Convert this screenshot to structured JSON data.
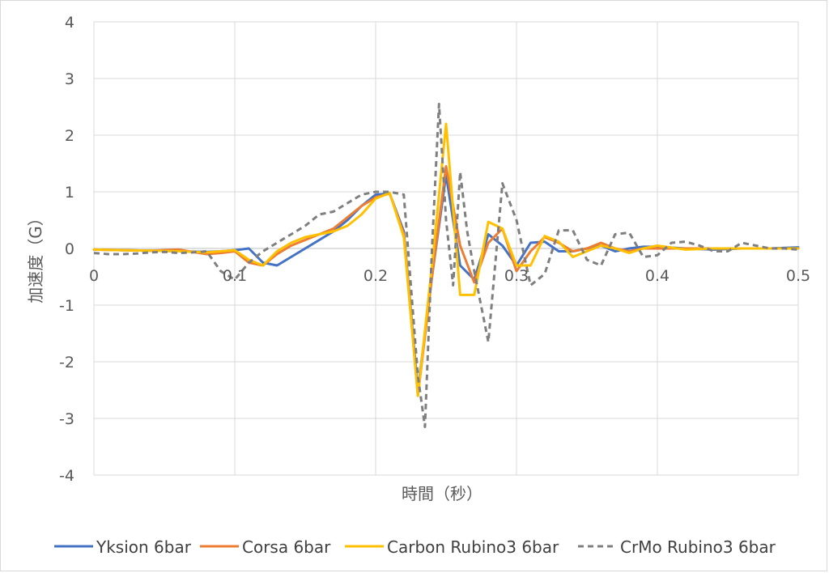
{
  "chart_data": {
    "type": "line",
    "title": "",
    "xlabel": "時間（秒）",
    "ylabel": "加速度（G）",
    "xlim": [
      0,
      0.5
    ],
    "ylim": [
      -4,
      4
    ],
    "x_ticks": [
      "0",
      "0.1",
      "0.2",
      "0.3",
      "0.4",
      "0.5"
    ],
    "y_ticks": [
      "4",
      "3",
      "2",
      "1",
      "0",
      "-1",
      "-2",
      "-3",
      "-4"
    ],
    "grid": true,
    "legend_position": "bottom",
    "series": [
      {
        "name": "Yksion 6bar",
        "color": "#4472C4",
        "dash": "solid",
        "points": [
          [
            0,
            -0.02
          ],
          [
            0.02,
            -0.03
          ],
          [
            0.04,
            -0.04
          ],
          [
            0.06,
            -0.05
          ],
          [
            0.08,
            -0.06
          ],
          [
            0.09,
            -0.05
          ],
          [
            0.1,
            -0.03
          ],
          [
            0.11,
            0.0
          ],
          [
            0.12,
            -0.25
          ],
          [
            0.13,
            -0.3
          ],
          [
            0.14,
            -0.15
          ],
          [
            0.15,
            0.0
          ],
          [
            0.16,
            0.15
          ],
          [
            0.17,
            0.3
          ],
          [
            0.18,
            0.5
          ],
          [
            0.19,
            0.75
          ],
          [
            0.2,
            0.95
          ],
          [
            0.21,
            0.97
          ],
          [
            0.22,
            0.3
          ],
          [
            0.23,
            -2.5
          ],
          [
            0.24,
            -0.5
          ],
          [
            0.25,
            1.3
          ],
          [
            0.26,
            -0.3
          ],
          [
            0.27,
            -0.55
          ],
          [
            0.28,
            0.25
          ],
          [
            0.29,
            0.05
          ],
          [
            0.3,
            -0.3
          ],
          [
            0.31,
            0.1
          ],
          [
            0.32,
            0.12
          ],
          [
            0.33,
            -0.05
          ],
          [
            0.34,
            -0.05
          ],
          [
            0.35,
            0.0
          ],
          [
            0.36,
            0.05
          ],
          [
            0.37,
            -0.05
          ],
          [
            0.38,
            0.0
          ],
          [
            0.39,
            0.03
          ],
          [
            0.4,
            0.03
          ],
          [
            0.42,
            0.0
          ],
          [
            0.44,
            -0.02
          ],
          [
            0.46,
            0.0
          ],
          [
            0.48,
            0.0
          ],
          [
            0.5,
            0.02
          ]
        ]
      },
      {
        "name": "Corsa 6bar",
        "color": "#ED7D31",
        "dash": "solid",
        "points": [
          [
            0,
            -0.02
          ],
          [
            0.02,
            -0.03
          ],
          [
            0.04,
            -0.04
          ],
          [
            0.06,
            -0.02
          ],
          [
            0.08,
            -0.1
          ],
          [
            0.09,
            -0.08
          ],
          [
            0.1,
            -0.05
          ],
          [
            0.11,
            -0.25
          ],
          [
            0.12,
            -0.3
          ],
          [
            0.13,
            -0.1
          ],
          [
            0.14,
            0.05
          ],
          [
            0.15,
            0.15
          ],
          [
            0.16,
            0.25
          ],
          [
            0.17,
            0.35
          ],
          [
            0.18,
            0.55
          ],
          [
            0.19,
            0.75
          ],
          [
            0.2,
            0.9
          ],
          [
            0.21,
            0.97
          ],
          [
            0.22,
            0.25
          ],
          [
            0.23,
            -2.6
          ],
          [
            0.24,
            -0.5
          ],
          [
            0.25,
            1.45
          ],
          [
            0.26,
            0.05
          ],
          [
            0.27,
            -0.6
          ],
          [
            0.28,
            0.1
          ],
          [
            0.29,
            0.35
          ],
          [
            0.3,
            -0.4
          ],
          [
            0.31,
            -0.05
          ],
          [
            0.32,
            0.2
          ],
          [
            0.33,
            0.1
          ],
          [
            0.34,
            -0.05
          ],
          [
            0.35,
            0.0
          ],
          [
            0.36,
            0.1
          ],
          [
            0.37,
            0.0
          ],
          [
            0.38,
            -0.05
          ],
          [
            0.39,
            0.0
          ],
          [
            0.4,
            0.0
          ],
          [
            0.42,
            0.0
          ],
          [
            0.44,
            0.0
          ],
          [
            0.46,
            0.0
          ],
          [
            0.48,
            0.0
          ],
          [
            0.5,
            0.0
          ]
        ]
      },
      {
        "name": "Carbon Rubino3 6bar",
        "color": "#FFC000",
        "dash": "solid",
        "points": [
          [
            0,
            -0.02
          ],
          [
            0.02,
            -0.03
          ],
          [
            0.04,
            -0.04
          ],
          [
            0.06,
            -0.05
          ],
          [
            0.08,
            -0.07
          ],
          [
            0.09,
            -0.05
          ],
          [
            0.1,
            -0.03
          ],
          [
            0.11,
            -0.2
          ],
          [
            0.12,
            -0.3
          ],
          [
            0.13,
            -0.05
          ],
          [
            0.14,
            0.1
          ],
          [
            0.15,
            0.2
          ],
          [
            0.16,
            0.25
          ],
          [
            0.17,
            0.3
          ],
          [
            0.18,
            0.4
          ],
          [
            0.19,
            0.6
          ],
          [
            0.2,
            0.88
          ],
          [
            0.21,
            0.98
          ],
          [
            0.22,
            0.2
          ],
          [
            0.23,
            -2.6
          ],
          [
            0.24,
            -0.3
          ],
          [
            0.25,
            2.2
          ],
          [
            0.26,
            -0.82
          ],
          [
            0.27,
            -0.82
          ],
          [
            0.28,
            0.47
          ],
          [
            0.29,
            0.35
          ],
          [
            0.3,
            -0.3
          ],
          [
            0.31,
            -0.3
          ],
          [
            0.32,
            0.22
          ],
          [
            0.33,
            0.12
          ],
          [
            0.34,
            -0.15
          ],
          [
            0.35,
            -0.05
          ],
          [
            0.36,
            0.05
          ],
          [
            0.37,
            0.0
          ],
          [
            0.38,
            -0.08
          ],
          [
            0.39,
            0.0
          ],
          [
            0.4,
            0.05
          ],
          [
            0.42,
            -0.02
          ],
          [
            0.44,
            0.0
          ],
          [
            0.46,
            0.0
          ],
          [
            0.48,
            0.0
          ],
          [
            0.5,
            0.0
          ]
        ]
      },
      {
        "name": "CrMo Rubino3 6bar",
        "color": "#7F7F7F",
        "dash": "dashed",
        "points": [
          [
            0,
            -0.08
          ],
          [
            0.01,
            -0.1
          ],
          [
            0.02,
            -0.1
          ],
          [
            0.03,
            -0.09
          ],
          [
            0.04,
            -0.07
          ],
          [
            0.05,
            -0.06
          ],
          [
            0.06,
            -0.08
          ],
          [
            0.07,
            -0.07
          ],
          [
            0.08,
            -0.05
          ],
          [
            0.09,
            -0.4
          ],
          [
            0.1,
            -0.55
          ],
          [
            0.11,
            -0.25
          ],
          [
            0.12,
            -0.05
          ],
          [
            0.13,
            0.1
          ],
          [
            0.14,
            0.25
          ],
          [
            0.15,
            0.4
          ],
          [
            0.16,
            0.6
          ],
          [
            0.17,
            0.65
          ],
          [
            0.18,
            0.8
          ],
          [
            0.19,
            0.95
          ],
          [
            0.2,
            1.0
          ],
          [
            0.21,
            1.0
          ],
          [
            0.22,
            0.95
          ],
          [
            0.23,
            -2.25
          ],
          [
            0.235,
            -3.15
          ],
          [
            0.24,
            0.0
          ],
          [
            0.245,
            2.55
          ],
          [
            0.25,
            0.5
          ],
          [
            0.255,
            -0.65
          ],
          [
            0.26,
            1.35
          ],
          [
            0.265,
            0.3
          ],
          [
            0.27,
            -0.4
          ],
          [
            0.28,
            -1.65
          ],
          [
            0.29,
            1.15
          ],
          [
            0.3,
            0.5
          ],
          [
            0.31,
            -0.65
          ],
          [
            0.32,
            -0.45
          ],
          [
            0.33,
            0.32
          ],
          [
            0.34,
            0.32
          ],
          [
            0.35,
            -0.2
          ],
          [
            0.36,
            -0.3
          ],
          [
            0.37,
            0.25
          ],
          [
            0.38,
            0.28
          ],
          [
            0.39,
            -0.15
          ],
          [
            0.4,
            -0.12
          ],
          [
            0.41,
            0.1
          ],
          [
            0.42,
            0.12
          ],
          [
            0.43,
            0.05
          ],
          [
            0.44,
            -0.05
          ],
          [
            0.45,
            -0.05
          ],
          [
            0.46,
            0.1
          ],
          [
            0.47,
            0.05
          ],
          [
            0.48,
            0.0
          ],
          [
            0.49,
            0.0
          ],
          [
            0.5,
            -0.02
          ]
        ]
      }
    ]
  }
}
